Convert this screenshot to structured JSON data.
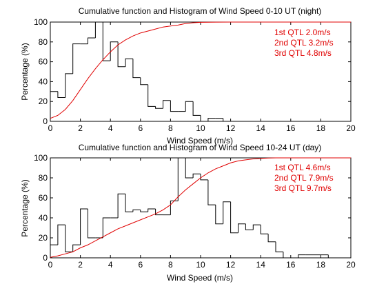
{
  "colors": {
    "background": "#ffffff",
    "axes": "#000000",
    "histogram": "#000000",
    "cumulative": "#e00000",
    "annotation": "#e00000"
  },
  "chart_data": [
    {
      "type": "histogram+line",
      "title": "Cumulative function and Histogram of Wind Speed 0-10 UT (night)",
      "xlabel": "Wind Speed (m/s)",
      "ylabel": "Percentage (%)",
      "xlim": [
        0,
        20
      ],
      "ylim": [
        0,
        100
      ],
      "xticks": [
        0,
        2,
        4,
        6,
        8,
        10,
        12,
        14,
        16,
        18,
        20
      ],
      "yticks": [
        0,
        20,
        40,
        60,
        80,
        100
      ],
      "grid": false,
      "histogram": {
        "bin_width": 0.5,
        "bin_start": 0,
        "values": [
          30,
          24,
          48,
          78,
          78,
          84,
          100,
          61,
          80,
          55,
          63,
          44,
          37,
          15,
          13,
          21,
          10,
          10,
          20,
          6,
          0,
          3,
          3,
          0,
          0,
          0,
          0,
          0,
          0,
          0,
          0,
          0,
          0,
          0,
          0,
          0,
          0,
          0,
          0,
          0
        ]
      },
      "cumulative": {
        "x": [
          0,
          0.5,
          1,
          1.5,
          2,
          2.5,
          3,
          3.5,
          4,
          4.5,
          5,
          5.5,
          6,
          6.5,
          7,
          7.5,
          8,
          8.5,
          9,
          9.5,
          10,
          11,
          12,
          20
        ],
        "y": [
          3,
          6,
          12,
          21,
          32,
          43,
          53,
          62,
          70,
          77,
          82,
          86,
          89,
          91,
          93,
          95,
          96,
          97,
          98.5,
          99.3,
          99.7,
          99.9,
          100,
          100
        ]
      },
      "annotations": [
        "1st QTL 2.0m/s",
        "2nd QTL 3.2m/s",
        "3rd QTL 4.8m/s"
      ]
    },
    {
      "type": "histogram+line",
      "title": "Cumulative function and Histogram of Wind Speed 10-24 UT (day)",
      "xlabel": "Wind Speed (m/s)",
      "ylabel": "Percentage (%)",
      "xlim": [
        0,
        20
      ],
      "ylim": [
        0,
        100
      ],
      "xticks": [
        0,
        2,
        4,
        6,
        8,
        10,
        12,
        14,
        16,
        18,
        20
      ],
      "yticks": [
        0,
        20,
        40,
        60,
        80,
        100
      ],
      "grid": false,
      "histogram": {
        "bin_width": 0.5,
        "bin_start": 0,
        "values": [
          13,
          33,
          6,
          13,
          49,
          20,
          20,
          40,
          40,
          64,
          46,
          48,
          46,
          49,
          43,
          43,
          57,
          100,
          80,
          84,
          78,
          53,
          34,
          56,
          25,
          34,
          28,
          33,
          24,
          16,
          6,
          0,
          0,
          3,
          3,
          3,
          3,
          0,
          0,
          0
        ]
      },
      "cumulative": {
        "x": [
          0,
          0.5,
          1,
          1.5,
          2,
          2.5,
          3,
          3.5,
          4,
          4.5,
          5,
          5.5,
          6,
          6.5,
          7,
          7.5,
          8,
          8.5,
          9,
          9.5,
          10,
          10.5,
          11,
          11.5,
          12,
          12.5,
          13,
          13.5,
          14,
          14.5,
          15,
          20
        ],
        "y": [
          0.5,
          2,
          4,
          6,
          10,
          13,
          17,
          21,
          25,
          29,
          32,
          35,
          38,
          41,
          44,
          48,
          53,
          61,
          68,
          74,
          80,
          85,
          89,
          92,
          95,
          97,
          98,
          99,
          99.5,
          99.8,
          100,
          100
        ]
      },
      "annotations": [
        "1st QTL 4.6m/s",
        "2nd QTL 7.9m/s",
        "3rd QTL 9.7m/s"
      ]
    }
  ]
}
